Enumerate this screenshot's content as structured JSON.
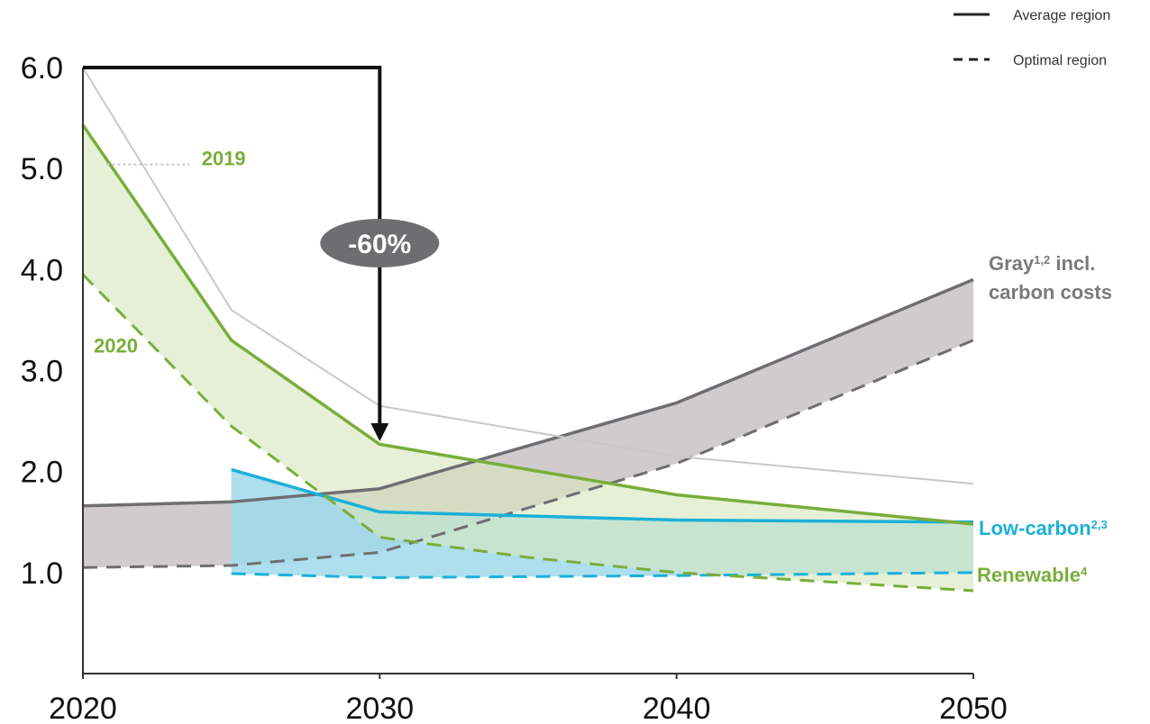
{
  "chart_data": {
    "type": "line",
    "title": "",
    "xlabel": "",
    "ylabel": "",
    "xlim": [
      2020,
      2050
    ],
    "ylim": [
      0,
      6.0
    ],
    "x_ticks": [
      "2020",
      "2030",
      "2040",
      "2050"
    ],
    "y_ticks": [
      "1.0",
      "2.0",
      "3.0",
      "4.0",
      "5.0",
      "6.0"
    ],
    "grid": false,
    "legend": {
      "placement": "top-right",
      "entries": [
        {
          "label": "Average region",
          "style": "solid"
        },
        {
          "label": "Optimal region",
          "style": "dashed"
        }
      ]
    },
    "annotation": {
      "text": "-60%",
      "from": [
        2020,
        6.0
      ],
      "corner": [
        2030,
        6.0
      ],
      "to": [
        2030,
        2.3
      ]
    },
    "series": [
      {
        "name": "Gray1,2 incl. carbon costs",
        "label_main": "Gray",
        "label_sup": "1,2",
        "label_rest": " incl.",
        "label_line2": "carbon costs",
        "color": "#6e6e72",
        "fill": "#cdc9cb",
        "average": {
          "x": [
            2020,
            2025,
            2030,
            2040,
            2050
          ],
          "y": [
            1.66,
            1.7,
            1.83,
            2.68,
            3.9
          ]
        },
        "optimal": {
          "x": [
            2020,
            2025,
            2030,
            2040,
            2050
          ],
          "y": [
            1.05,
            1.07,
            1.2,
            2.08,
            3.3
          ]
        }
      },
      {
        "name": "Low-carbon2,3",
        "label_main": "Low-carbon",
        "label_sup": "2,3",
        "color": "#1bb0d8",
        "fill": "#9fd9ec",
        "average": {
          "x": [
            2025,
            2030,
            2040,
            2050
          ],
          "y": [
            2.02,
            1.6,
            1.52,
            1.5
          ]
        },
        "optimal": {
          "x": [
            2025,
            2030,
            2040,
            2050
          ],
          "y": [
            0.99,
            0.95,
            0.97,
            1.0
          ]
        }
      },
      {
        "name": "Renewable4",
        "label_main": "Renewable",
        "label_sup": "4",
        "color": "#7aad3a",
        "fill": "#d7e7bf",
        "average": {
          "x": [
            2020,
            2025,
            2030,
            2040,
            2050
          ],
          "y": [
            5.43,
            3.3,
            2.27,
            1.77,
            1.48
          ]
        },
        "optimal": {
          "x": [
            2020,
            2025,
            2030,
            2035,
            2040,
            2050
          ],
          "y": [
            3.95,
            2.45,
            1.35,
            1.15,
            1.0,
            0.82
          ]
        }
      },
      {
        "name": "2019",
        "label_main": "2019",
        "color": "#c8c8c8",
        "average": {
          "x": [
            2020,
            2025,
            2030,
            2040,
            2050
          ],
          "y": [
            6.0,
            3.6,
            2.65,
            2.15,
            1.88
          ]
        }
      }
    ],
    "annotations": [
      {
        "text": "2019",
        "color": "#7aad3a",
        "at": [
          2024,
          5.05
        ]
      },
      {
        "text": "2020",
        "color": "#7aad3a",
        "at": [
          2021.2,
          3.15
        ]
      }
    ]
  }
}
